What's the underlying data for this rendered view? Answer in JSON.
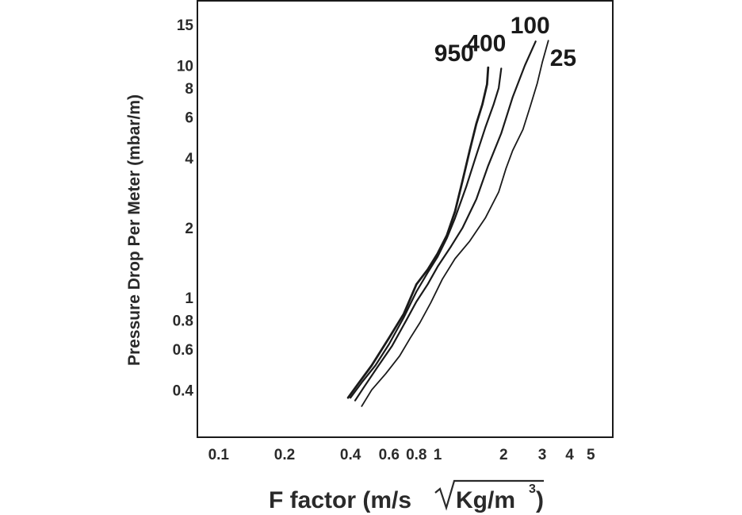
{
  "chart_data": {
    "type": "line",
    "title": "",
    "ylabel": "Pressure Drop Per Meter (mbar/m)",
    "xlabel_parts": [
      "F factor (m/s",
      "Kg/m",
      "3",
      ")"
    ],
    "x_scale": "log",
    "y_scale": "log",
    "xlim": [
      0.08,
      6.3
    ],
    "ylim": [
      0.25,
      19
    ],
    "grid": false,
    "x_ticks": [
      {
        "value": 0.1,
        "label": "0.1"
      },
      {
        "value": 0.2,
        "label": "0.2"
      },
      {
        "value": 0.4,
        "label": "0.4"
      },
      {
        "value": 0.6,
        "label": "0.6"
      },
      {
        "value": 0.8,
        "label": "0.8"
      },
      {
        "value": 1,
        "label": "1"
      },
      {
        "value": 2,
        "label": "2"
      },
      {
        "value": 3,
        "label": "3"
      },
      {
        "value": 4,
        "label": "4"
      },
      {
        "value": 5,
        "label": "5"
      }
    ],
    "y_ticks": [
      {
        "value": 0.4,
        "label": "0.4"
      },
      {
        "value": 0.6,
        "label": "0.6"
      },
      {
        "value": 0.8,
        "label": "0.8"
      },
      {
        "value": 1,
        "label": "1"
      },
      {
        "value": 2,
        "label": "2"
      },
      {
        "value": 4,
        "label": "4"
      },
      {
        "value": 6,
        "label": "6"
      },
      {
        "value": 8,
        "label": "8"
      },
      {
        "value": 10,
        "label": "10"
      },
      {
        "value": 15,
        "label": "15"
      }
    ],
    "series": [
      {
        "name": "950",
        "color": "#1a1a1a",
        "points": [
          [
            0.39,
            0.37
          ],
          [
            0.43,
            0.42
          ],
          [
            0.5,
            0.51
          ],
          [
            0.6,
            0.67
          ],
          [
            0.7,
            0.85
          ],
          [
            0.8,
            1.14
          ],
          [
            0.9,
            1.32
          ],
          [
            1.0,
            1.55
          ],
          [
            1.1,
            1.85
          ],
          [
            1.2,
            2.35
          ],
          [
            1.3,
            3.2
          ],
          [
            1.4,
            4.3
          ],
          [
            1.5,
            5.6
          ],
          [
            1.6,
            6.8
          ],
          [
            1.68,
            8.3
          ],
          [
            1.7,
            9.8
          ]
        ]
      },
      {
        "name": "400",
        "color": "#1a1a1a",
        "points": [
          [
            0.4,
            0.37
          ],
          [
            0.45,
            0.43
          ],
          [
            0.52,
            0.51
          ],
          [
            0.6,
            0.63
          ],
          [
            0.7,
            0.82
          ],
          [
            0.8,
            1.06
          ],
          [
            0.9,
            1.28
          ],
          [
            1.0,
            1.5
          ],
          [
            1.1,
            1.8
          ],
          [
            1.2,
            2.2
          ],
          [
            1.35,
            3.0
          ],
          [
            1.5,
            4.1
          ],
          [
            1.65,
            5.4
          ],
          [
            1.8,
            6.8
          ],
          [
            1.9,
            8.0
          ],
          [
            1.95,
            9.7
          ]
        ]
      },
      {
        "name": "100",
        "color": "#1a1a1a",
        "points": [
          [
            0.42,
            0.36
          ],
          [
            0.46,
            0.41
          ],
          [
            0.53,
            0.5
          ],
          [
            0.62,
            0.62
          ],
          [
            0.72,
            0.8
          ],
          [
            0.8,
            0.96
          ],
          [
            0.9,
            1.14
          ],
          [
            1.0,
            1.36
          ],
          [
            1.15,
            1.66
          ],
          [
            1.3,
            2.0
          ],
          [
            1.5,
            2.65
          ],
          [
            1.7,
            3.7
          ],
          [
            1.95,
            5.1
          ],
          [
            2.2,
            7.3
          ],
          [
            2.5,
            10.0
          ],
          [
            2.8,
            12.7
          ]
        ]
      },
      {
        "name": "25",
        "color": "#1a1a1a",
        "points": [
          [
            0.45,
            0.34
          ],
          [
            0.5,
            0.4
          ],
          [
            0.58,
            0.47
          ],
          [
            0.67,
            0.56
          ],
          [
            0.75,
            0.67
          ],
          [
            0.83,
            0.78
          ],
          [
            0.93,
            0.95
          ],
          [
            1.05,
            1.2
          ],
          [
            1.2,
            1.47
          ],
          [
            1.4,
            1.75
          ],
          [
            1.65,
            2.2
          ],
          [
            1.9,
            2.85
          ],
          [
            2.05,
            3.6
          ],
          [
            2.2,
            4.3
          ],
          [
            2.45,
            5.3
          ],
          [
            2.65,
            6.7
          ],
          [
            2.85,
            8.4
          ],
          [
            3.0,
            10.3
          ],
          [
            3.2,
            12.8
          ]
        ]
      }
    ]
  }
}
